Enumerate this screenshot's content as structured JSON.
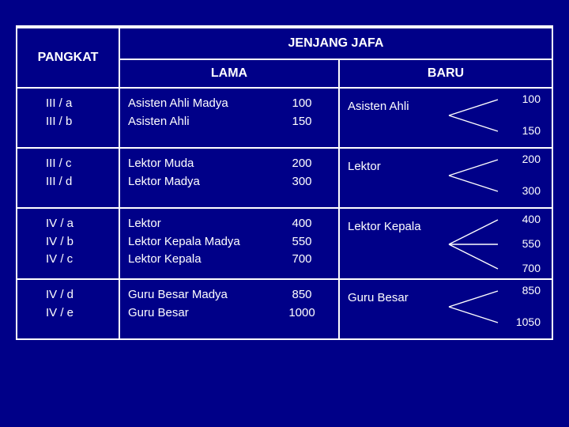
{
  "header": {
    "pangkat": "PANGKAT",
    "jenjang": "JENJANG JAFA",
    "lama": "LAMA",
    "baru": "BARU"
  },
  "rows": [
    {
      "pangkat": [
        "III / a",
        "III / b"
      ],
      "lama_labels": [
        "Asisten Ahli Madya",
        "Asisten Ahli"
      ],
      "lama_vals": [
        "100",
        "150"
      ],
      "baru_label": "Asisten Ahli",
      "baru_vals": [
        "100",
        "150"
      ]
    },
    {
      "pangkat": [
        "III / c",
        "III / d"
      ],
      "lama_labels": [
        "Lektor Muda",
        "Lektor Madya"
      ],
      "lama_vals": [
        "200",
        "300"
      ],
      "baru_label": "Lektor",
      "baru_vals": [
        "200",
        "300"
      ]
    },
    {
      "pangkat": [
        "IV / a",
        "IV / b",
        "IV / c"
      ],
      "lama_labels": [
        "Lektor",
        "Lektor Kepala Madya",
        "Lektor Kepala"
      ],
      "lama_vals": [
        "400",
        "550",
        "700"
      ],
      "baru_label": "Lektor Kepala",
      "baru_vals": [
        "400",
        "550",
        "700"
      ]
    },
    {
      "pangkat": [
        "IV / d",
        "IV / e"
      ],
      "lama_labels": [
        "Guru Besar Madya",
        "Guru Besar"
      ],
      "lama_vals": [
        "850",
        "1000"
      ],
      "baru_label": "Guru Besar",
      "baru_vals": [
        "850",
        "1050"
      ]
    }
  ],
  "style": {
    "background": "#000088",
    "border_color": "#ffffff",
    "text_color": "#ffffff",
    "font_family": "Arial"
  }
}
